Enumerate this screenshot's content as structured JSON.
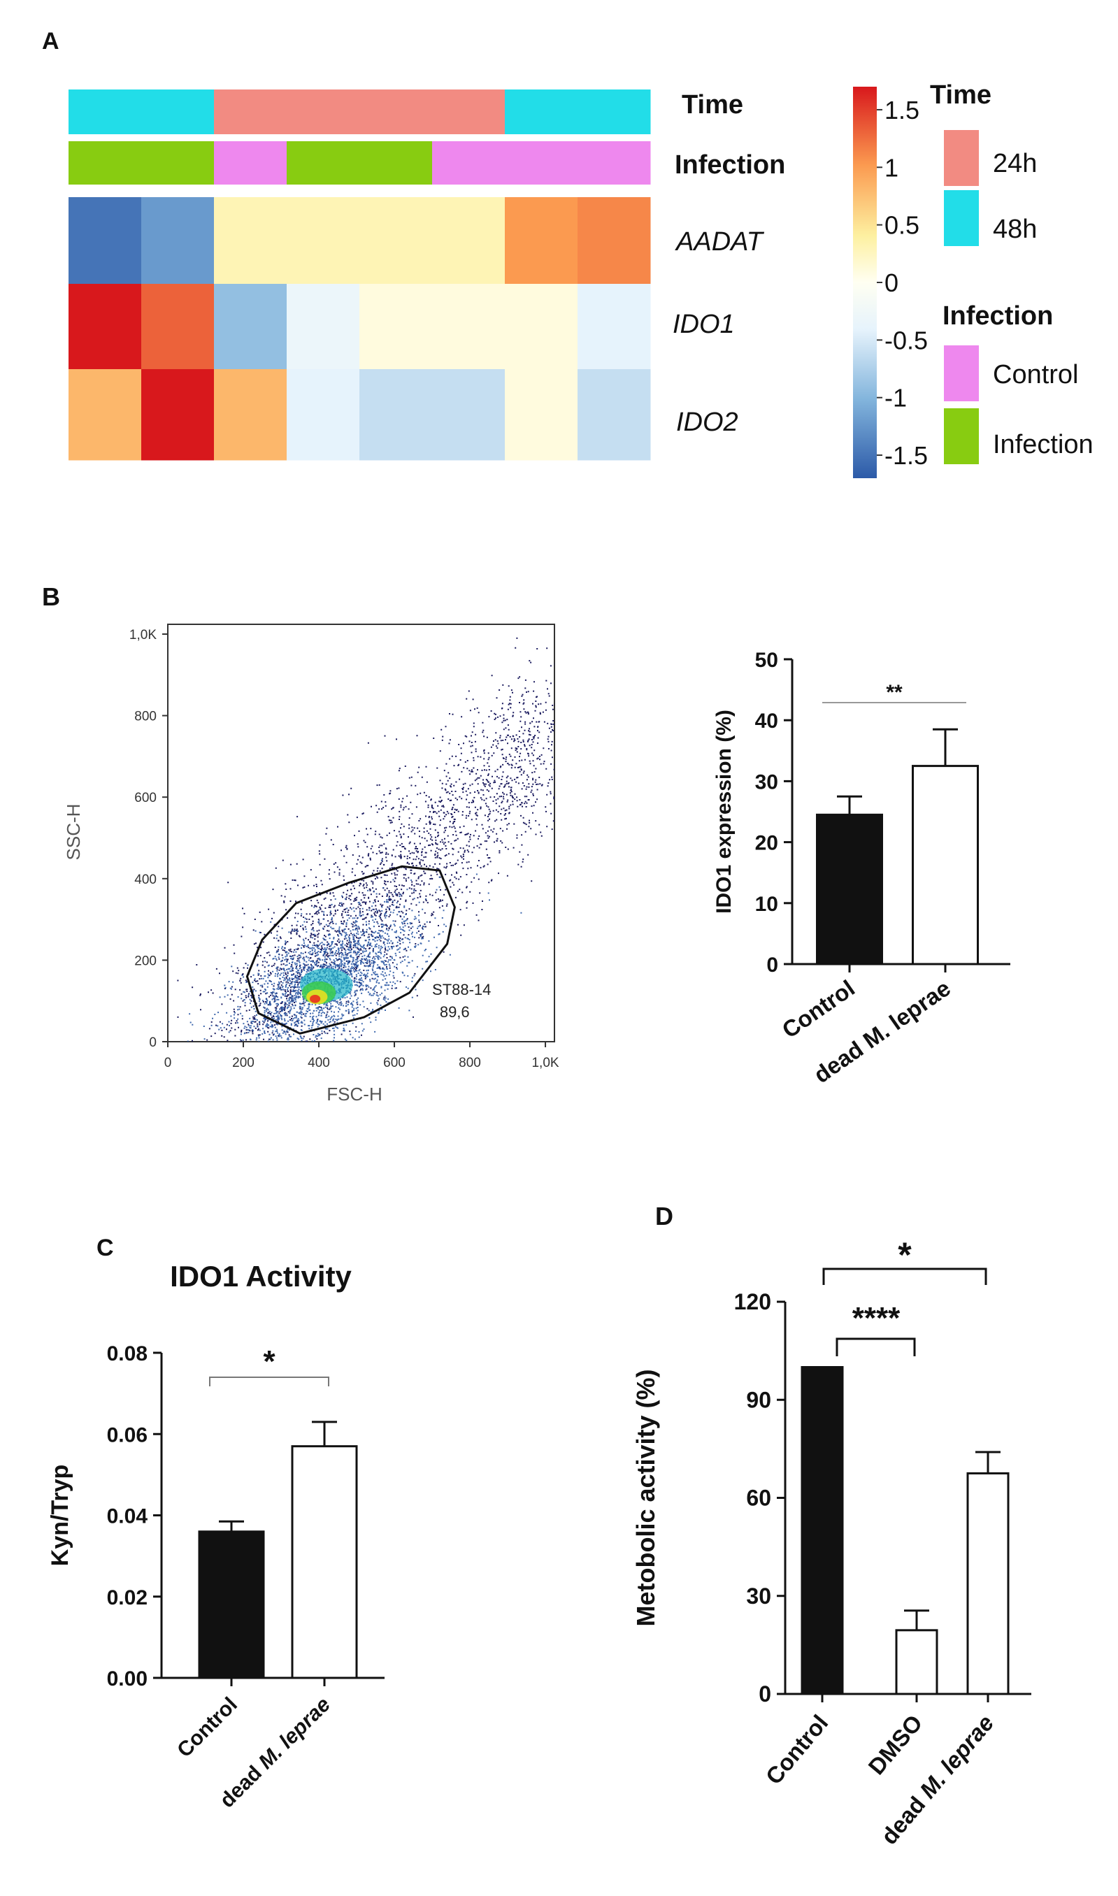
{
  "panel_labels": {
    "a": "A",
    "b": "B",
    "c": "C",
    "d": "D"
  },
  "colors": {
    "time_24h": "#F28B82",
    "time_48h": "#22DDE8",
    "infection_control": "#EE88EE",
    "infection_infection": "#88CC11",
    "ink": "#111111",
    "dots": "#1a1a5e"
  },
  "chart_data": [
    {
      "type": "heatmap",
      "panel": "A",
      "rows": [
        "AADAT",
        "IDO1",
        "IDO2"
      ],
      "columns": 8,
      "values": [
        [
          -1.5,
          -1.2,
          0.3,
          0.3,
          0.3,
          0.3,
          1.0,
          1.1
        ],
        [
          1.7,
          1.3,
          -0.9,
          -0.3,
          0.1,
          0.1,
          0.1,
          -0.4
        ],
        [
          0.8,
          1.7,
          0.8,
          -0.4,
          -0.6,
          -0.6,
          0.1,
          -0.6
        ]
      ],
      "annotation_rows": [
        {
          "name": "Time",
          "values": [
            "48h",
            "48h",
            "24h",
            "24h",
            "24h",
            "24h",
            "48h",
            "48h"
          ]
        },
        {
          "name": "Infection",
          "values": [
            "Infection",
            "Infection",
            "Control",
            "Infection",
            "Infection",
            "Control",
            "Control",
            "Control"
          ]
        }
      ],
      "colorbar": {
        "min": -1.7,
        "max": 1.7,
        "ticks": [
          "1.5",
          "1",
          "0.5",
          "0",
          "-0.5",
          "-1",
          "-1.5"
        ],
        "tick_values": [
          1.5,
          1.0,
          0.5,
          0,
          -0.5,
          -1.0,
          -1.5
        ]
      },
      "legend": {
        "time_title": "Time",
        "time_items": [
          "24h",
          "48h"
        ],
        "infection_title": "Infection",
        "infection_items": [
          "Control",
          "Infection"
        ]
      }
    },
    {
      "type": "scatter",
      "panel": "B",
      "subtitle": "flow cytometry dot plot",
      "xlabel": "FSC-H",
      "ylabel": "SSC-H",
      "xlim": [
        0,
        1024
      ],
      "ylim": [
        0,
        1024
      ],
      "x_ticks": [
        "0",
        "200",
        "400",
        "600",
        "800",
        "1,0K"
      ],
      "x_tick_values": [
        0,
        200,
        400,
        600,
        800,
        1000
      ],
      "y_ticks": [
        "0",
        "200",
        "400",
        "600",
        "800",
        "1,0K"
      ],
      "y_tick_values": [
        0,
        200,
        400,
        600,
        800,
        1000
      ],
      "gate_name": "ST88-14",
      "gate_percent": "89,6",
      "gate_polygon": [
        [
          240,
          70
        ],
        [
          210,
          160
        ],
        [
          250,
          250
        ],
        [
          340,
          340
        ],
        [
          480,
          390
        ],
        [
          620,
          430
        ],
        [
          720,
          420
        ],
        [
          760,
          330
        ],
        [
          740,
          240
        ],
        [
          640,
          120
        ],
        [
          520,
          60
        ],
        [
          350,
          20
        ]
      ]
    },
    {
      "type": "bar",
      "panel": "B",
      "categories": [
        "Control",
        "dead M. leprae"
      ],
      "values": [
        24.5,
        32.5
      ],
      "errors": [
        3,
        6
      ],
      "fills": [
        "#111111",
        "#ffffff"
      ],
      "ylabel": "IDO1 expression (%)",
      "ylim": [
        0,
        50
      ],
      "yticks": [
        "0",
        "10",
        "20",
        "30",
        "40",
        "50"
      ],
      "ytick_values": [
        0,
        10,
        20,
        30,
        40,
        50
      ],
      "significance": "**"
    },
    {
      "type": "bar",
      "panel": "C",
      "title": "IDO1 Activity",
      "categories": [
        "Control",
        "dead M. leprae"
      ],
      "values": [
        0.036,
        0.057
      ],
      "errors": [
        0.0025,
        0.006
      ],
      "fills": [
        "#111111",
        "#ffffff"
      ],
      "ylabel": "Kyn/Tryp",
      "ylim": [
        0,
        0.08
      ],
      "yticks": [
        "0.00",
        "0.02",
        "0.04",
        "0.06",
        "0.08"
      ],
      "ytick_values": [
        0,
        0.02,
        0.04,
        0.06,
        0.08
      ],
      "significance": "*"
    },
    {
      "type": "bar",
      "panel": "D",
      "categories": [
        "Control",
        "DMSO",
        "dead M. leprae"
      ],
      "values": [
        100,
        19.5,
        67.5
      ],
      "errors": [
        0,
        6,
        6.5
      ],
      "fills": [
        "#111111",
        "#ffffff",
        "#ffffff"
      ],
      "ylabel": "Metobolic activity (%)",
      "ylim": [
        0,
        120
      ],
      "yticks": [
        "0",
        "30",
        "60",
        "90",
        "120"
      ],
      "ytick_values": [
        0,
        30,
        60,
        90,
        120
      ],
      "significance": [
        {
          "from": "Control",
          "to": "DMSO",
          "label": "****"
        },
        {
          "from": "Control",
          "to": "dead M. leprae",
          "label": "*"
        }
      ]
    }
  ]
}
